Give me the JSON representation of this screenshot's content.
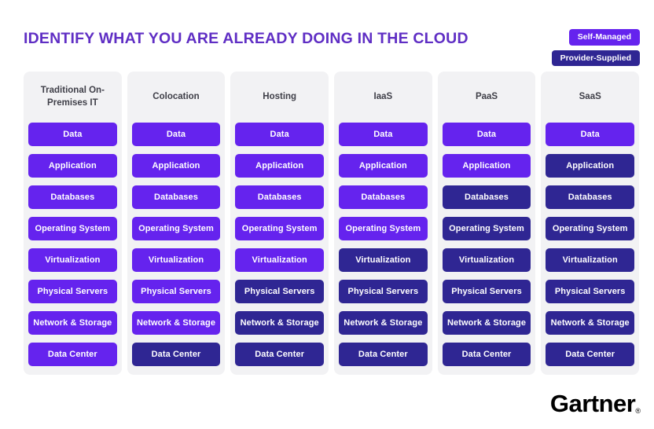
{
  "title": "IDENTIFY WHAT YOU ARE ALREADY DOING IN THE CLOUD",
  "legend": {
    "self_managed_label": "Self-Managed",
    "provider_supplied_label": "Provider-Supplied"
  },
  "colors": {
    "self_managed": "#6523ee",
    "provider_supplied": "#2f2693",
    "title": "#5f2ec4",
    "column_background": "#f2f2f4",
    "header_text": "#3f3f48"
  },
  "rows": [
    "Data",
    "Application",
    "Databases",
    "Operating System",
    "Virtualization",
    "Physical Servers",
    "Network & Storage",
    "Data Center"
  ],
  "columns": [
    {
      "header": "Traditional On-Premises IT",
      "cells": [
        "self",
        "self",
        "self",
        "self",
        "self",
        "self",
        "self",
        "self"
      ]
    },
    {
      "header": "Colocation",
      "cells": [
        "self",
        "self",
        "self",
        "self",
        "self",
        "self",
        "self",
        "provider"
      ]
    },
    {
      "header": "Hosting",
      "cells": [
        "self",
        "self",
        "self",
        "self",
        "self",
        "provider",
        "provider",
        "provider"
      ]
    },
    {
      "header": "IaaS",
      "cells": [
        "self",
        "self",
        "self",
        "self",
        "provider",
        "provider",
        "provider",
        "provider"
      ]
    },
    {
      "header": "PaaS",
      "cells": [
        "self",
        "self",
        "provider",
        "provider",
        "provider",
        "provider",
        "provider",
        "provider"
      ]
    },
    {
      "header": "SaaS",
      "cells": [
        "self",
        "provider",
        "provider",
        "provider",
        "provider",
        "provider",
        "provider",
        "provider"
      ]
    }
  ],
  "footer": {
    "logo_text": "Gartner",
    "registered_mark": "®"
  }
}
